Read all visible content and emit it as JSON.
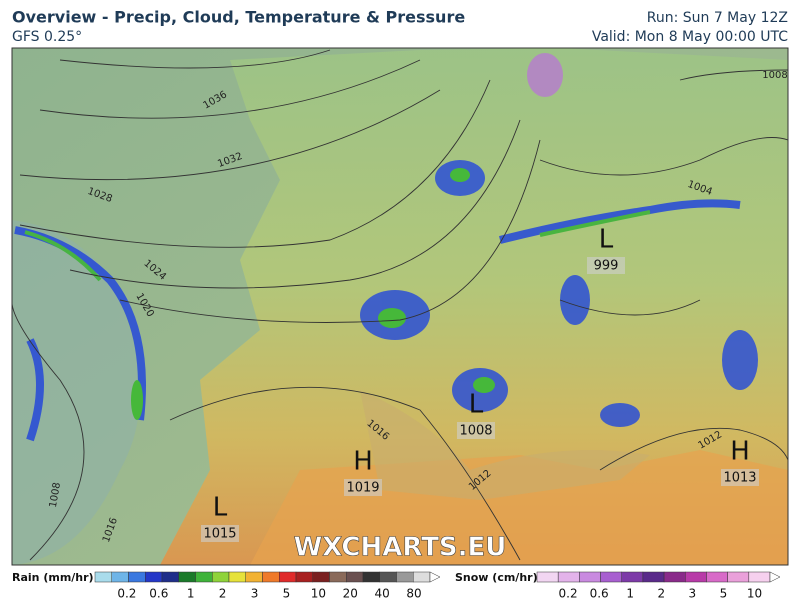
{
  "header": {
    "title": "Overview - Precip, Cloud, Temperature & Pressure",
    "model": "GFS 0.25°",
    "run": "Run: Sun 7 May 12Z",
    "valid": "Valid: Mon 8 May 00:00 UTC"
  },
  "pressure_centers": [
    {
      "symbol": "L",
      "value": "999"
    },
    {
      "symbol": "L",
      "value": "1008"
    },
    {
      "symbol": "H",
      "value": "1019"
    },
    {
      "symbol": "L",
      "value": "1015"
    },
    {
      "symbol": "H",
      "value": "1013"
    }
  ],
  "isobar_labels": [
    "1036",
    "1032",
    "1028",
    "1024",
    "1020",
    "1016",
    "1012",
    "1008",
    "1004",
    "1012",
    "1016",
    "1008"
  ],
  "watermark": "WXCHARTS.EU",
  "legend": {
    "rain": {
      "title": "Rain (mm/hr)",
      "labels": [
        "0.2",
        "0.6",
        "1",
        "2",
        "3",
        "5",
        "10",
        "20",
        "40",
        "80"
      ]
    },
    "snow": {
      "title": "Snow (cm/hr)",
      "labels": [
        "0.2",
        "0.6",
        "1",
        "2",
        "3",
        "5",
        "10"
      ]
    }
  }
}
